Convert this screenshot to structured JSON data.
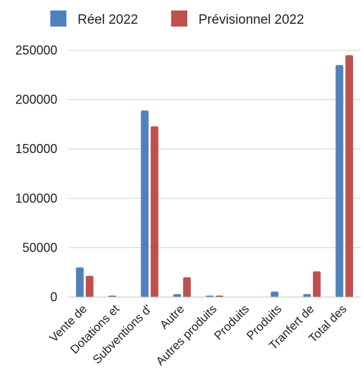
{
  "chart_data": {
    "type": "bar",
    "categories": [
      "Vente de",
      "Dotations et",
      "Subventions d'",
      "Autre",
      "Autres produits",
      "Produits",
      "Produits",
      "Tranfert de",
      "Total des"
    ],
    "series": [
      {
        "name": "Réel 2022",
        "color": "#4f81bd",
        "values": [
          30000,
          1500,
          189000,
          3000,
          1500,
          0,
          5500,
          3000,
          235000
        ]
      },
      {
        "name": "Prévisionnel 2022",
        "color": "#c0504d",
        "values": [
          21500,
          0,
          173000,
          20000,
          1500,
          0,
          0,
          26000,
          245000
        ]
      }
    ],
    "ylim": [
      0,
      250000
    ],
    "yticks": [
      0,
      50000,
      100000,
      150000,
      200000,
      250000
    ],
    "grid": true,
    "legend": "top"
  }
}
